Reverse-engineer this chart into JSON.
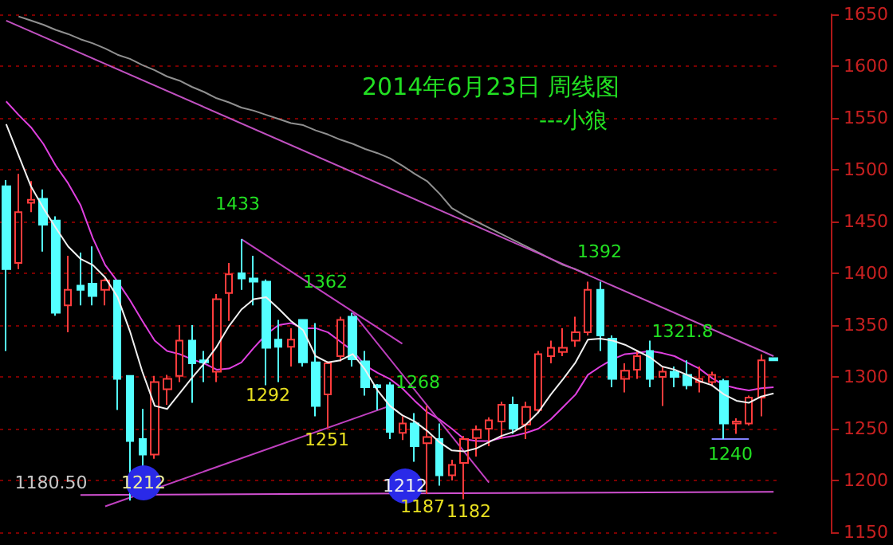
{
  "chart_data": {
    "type": "candlestick",
    "title": "2014年6月23日 周线图",
    "subtitle": "---小狼",
    "categories": [
      null,
      null,
      null,
      null,
      null,
      null,
      null,
      null,
      null,
      null,
      null,
      null,
      null,
      null,
      null,
      null,
      null,
      null,
      null,
      null,
      null,
      null,
      null,
      null,
      null,
      null,
      null,
      null,
      null,
      null,
      null,
      null,
      null,
      null,
      null,
      null,
      null,
      null,
      null,
      null,
      null,
      null,
      null,
      null,
      null,
      null,
      null,
      null,
      null,
      null,
      null,
      null,
      null,
      null,
      null,
      null,
      null,
      null,
      null,
      null,
      null,
      null,
      null
    ],
    "ohlc": [
      [
        1484,
        1490,
        1325,
        1404
      ],
      [
        1410,
        1496,
        1404,
        1459
      ],
      [
        1468,
        1489,
        1459,
        1471
      ],
      [
        1472,
        1481,
        1421,
        1447
      ],
      [
        1451,
        1455,
        1359,
        1362
      ],
      [
        1369,
        1417,
        1343,
        1384
      ],
      [
        1388,
        1420,
        1369,
        1384
      ],
      [
        1390,
        1426,
        1369,
        1378
      ],
      [
        1384,
        1395,
        1369,
        1393
      ],
      [
        1393,
        1393,
        1268,
        1298
      ],
      [
        1301,
        1301,
        1180.5,
        1238
      ],
      [
        1240,
        1269,
        1212,
        1225
      ],
      [
        1225,
        1301,
        1221,
        1295
      ],
      [
        1288,
        1302,
        1273,
        1298
      ],
      [
        1301,
        1350,
        1295,
        1335
      ],
      [
        1335,
        1350,
        1275,
        1313
      ],
      [
        1316,
        1325,
        1295,
        1314
      ],
      [
        1305,
        1380,
        1295,
        1375
      ],
      [
        1381,
        1410,
        1354,
        1399
      ],
      [
        1400,
        1433,
        1384,
        1395
      ],
      [
        1395,
        1417,
        1369,
        1392
      ],
      [
        1392,
        1394,
        1292,
        1328
      ],
      [
        1336,
        1355,
        1295,
        1329
      ],
      [
        1329,
        1347,
        1310,
        1336
      ],
      [
        1355,
        1355,
        1310,
        1314
      ],
      [
        1314,
        1352,
        1262,
        1272
      ],
      [
        1283,
        1315,
        1251,
        1313
      ],
      [
        1320,
        1358,
        1315,
        1355
      ],
      [
        1358,
        1362,
        1310,
        1317
      ],
      [
        1315,
        1325,
        1282,
        1290
      ],
      [
        1292,
        1293,
        1268,
        1290
      ],
      [
        1292,
        1295,
        1240,
        1247
      ],
      [
        1246,
        1262,
        1239,
        1255
      ],
      [
        1255,
        1265,
        1218,
        1233
      ],
      [
        1236,
        1272,
        1187,
        1242
      ],
      [
        1240,
        1255,
        1195,
        1205
      ],
      [
        1205,
        1220,
        1200,
        1215
      ],
      [
        1217,
        1243,
        1182,
        1240
      ],
      [
        1241,
        1253,
        1223,
        1249
      ],
      [
        1250,
        1261,
        1233,
        1258
      ],
      [
        1257,
        1276,
        1240,
        1273
      ],
      [
        1273,
        1281,
        1245,
        1250
      ],
      [
        1254,
        1276,
        1240,
        1271
      ],
      [
        1268,
        1325,
        1265,
        1322
      ],
      [
        1320,
        1335,
        1313,
        1328
      ],
      [
        1324,
        1347,
        1320,
        1328
      ],
      [
        1335,
        1358,
        1329,
        1343
      ],
      [
        1343,
        1392,
        1340,
        1384
      ],
      [
        1384,
        1392,
        1325,
        1340
      ],
      [
        1337,
        1340,
        1290,
        1298
      ],
      [
        1298,
        1313,
        1285,
        1306
      ],
      [
        1307,
        1325,
        1298,
        1320
      ],
      [
        1325,
        1335,
        1290,
        1298
      ],
      [
        1300,
        1310,
        1272,
        1305
      ],
      [
        1305,
        1310,
        1290,
        1300
      ],
      [
        1302,
        1316,
        1288,
        1292
      ],
      [
        1295,
        1310,
        1285,
        1298
      ],
      [
        1295,
        1305,
        1291,
        1302
      ],
      [
        1296,
        1298,
        1240,
        1255
      ],
      [
        1255,
        1260,
        1245,
        1257
      ],
      [
        1255,
        1282,
        1253,
        1280
      ],
      [
        1280,
        1321.8,
        1262,
        1316
      ],
      [
        1318,
        1318,
        1316,
        1316
      ]
    ],
    "series": [
      {
        "type": "line",
        "color": "#f0f0f0",
        "values": [
          1544,
          1514,
          1484,
          1463,
          1444,
          1426,
          1414,
          1408,
          1396,
          1377,
          1344,
          1305,
          1272,
          1269,
          1284,
          1299,
          1313,
          1329,
          1349,
          1365,
          1375,
          1377,
          1366,
          1354,
          1345,
          1320,
          1314,
          1316,
          1322,
          1307,
          1287,
          1272,
          1263,
          1257,
          1248,
          1237,
          1229,
          1228,
          1231,
          1237,
          1243,
          1247,
          1254,
          1266,
          1283,
          1298,
          1314,
          1336,
          1337,
          1335,
          1331,
          1325,
          1319,
          1310,
          1307,
          1302,
          1296,
          1292,
          1283,
          1277,
          1275,
          1281,
          1284
        ]
      },
      {
        "type": "line",
        "color": "#e040e0",
        "values": [
          1566,
          1553,
          1541,
          1525,
          1504,
          1487,
          1466,
          1434,
          1408,
          1392,
          1374,
          1354,
          1335,
          1325,
          1322,
          1317,
          1313,
          1307,
          1308,
          1314,
          1328,
          1341,
          1350,
          1352,
          1347,
          1347,
          1343,
          1334,
          1325,
          1311,
          1304,
          1298,
          1289,
          1277,
          1266,
          1259,
          1250,
          1240,
          1238,
          1238,
          1241,
          1243,
          1246,
          1250,
          1259,
          1271,
          1283,
          1302,
          1310,
          1317,
          1322,
          1323,
          1325,
          1323,
          1320,
          1314,
          1308,
          1299,
          1292,
          1289,
          1287,
          1289,
          1290
        ]
      },
      {
        "type": "line",
        "color": "#909090",
        "values": [
          null,
          1648,
          1644,
          1640,
          1635,
          1631,
          1626,
          1622,
          1617,
          1611,
          1607,
          1601,
          1596,
          1590,
          1586,
          1580,
          1575,
          1569,
          1565,
          1560,
          1557,
          1553,
          1549,
          1545,
          1543,
          1538,
          1534,
          1529,
          1525,
          1520,
          1516,
          1511,
          1504,
          1496,
          1489,
          1477,
          1463,
          1456,
          1450,
          1444,
          1438,
          1432,
          1426,
          1420,
          1414,
          1408,
          1404,
          1399,
          null,
          null,
          null,
          null,
          null,
          null,
          null,
          null,
          null,
          null,
          null,
          null,
          null,
          null,
          null
        ]
      },
      {
        "type": "line",
        "color": "#c050c0",
        "values": [
          1644,
          null,
          null,
          null,
          null,
          null,
          null,
          null,
          null,
          null,
          null,
          null,
          null,
          null,
          null,
          null,
          null,
          null,
          null,
          null,
          null,
          null,
          null,
          null,
          null,
          null,
          null,
          null,
          null,
          null,
          null,
          null,
          null,
          null,
          null,
          null,
          null,
          null,
          null,
          null,
          null,
          null,
          null,
          null,
          null,
          null,
          null,
          null,
          null,
          null,
          null,
          null,
          null,
          null,
          null,
          null,
          null,
          null,
          null,
          null,
          null,
          null,
          1320
        ]
      },
      {
        "type": "line",
        "color": "#c040c0",
        "values": [
          null,
          null,
          null,
          null,
          null,
          null,
          null,
          null,
          null,
          null,
          null,
          null,
          null,
          null,
          null,
          null,
          null,
          null,
          null,
          1433,
          null,
          null,
          null,
          null,
          null,
          null,
          null,
          null,
          null,
          null,
          null,
          null,
          1332,
          null,
          null,
          null,
          null,
          null,
          null,
          null,
          null,
          null,
          null,
          null,
          null,
          null,
          null,
          null,
          null,
          null,
          null,
          null,
          null,
          null,
          null,
          null,
          null,
          null,
          null,
          null,
          null,
          null,
          null
        ]
      },
      {
        "type": "line",
        "color": "#c040c0",
        "values": [
          null,
          null,
          null,
          null,
          null,
          null,
          null,
          null,
          null,
          null,
          null,
          null,
          null,
          null,
          null,
          null,
          null,
          null,
          null,
          null,
          null,
          null,
          null,
          null,
          null,
          null,
          null,
          null,
          1362,
          null,
          null,
          null,
          null,
          null,
          null,
          null,
          null,
          null,
          null,
          1198,
          null,
          null,
          null,
          null,
          null,
          null,
          null,
          null,
          null,
          null,
          null,
          null,
          null,
          null,
          null,
          null,
          null,
          null,
          null,
          null,
          null,
          null,
          null
        ]
      },
      {
        "type": "line",
        "color": "#c040c0",
        "values": [
          null,
          null,
          null,
          null,
          null,
          null,
          null,
          null,
          1175,
          null,
          null,
          null,
          null,
          null,
          null,
          null,
          null,
          null,
          null,
          null,
          null,
          null,
          null,
          null,
          null,
          null,
          null,
          null,
          null,
          null,
          null,
          1272,
          null,
          null,
          null,
          null,
          null,
          null,
          null,
          null,
          null,
          null,
          null,
          null,
          null,
          null,
          null,
          null,
          null,
          null,
          null,
          null,
          null,
          null,
          null,
          null,
          null,
          null,
          null,
          null,
          null,
          null,
          null
        ]
      },
      {
        "type": "line",
        "color": "#d050d0",
        "values": [
          null,
          null,
          null,
          null,
          null,
          null,
          1186,
          null,
          null,
          null,
          null,
          null,
          null,
          null,
          null,
          null,
          null,
          null,
          null,
          null,
          null,
          null,
          null,
          null,
          null,
          null,
          null,
          null,
          null,
          null,
          null,
          null,
          null,
          null,
          null,
          null,
          null,
          null,
          null,
          null,
          null,
          null,
          null,
          null,
          null,
          null,
          null,
          null,
          null,
          null,
          null,
          null,
          null,
          null,
          null,
          null,
          null,
          null,
          null,
          null,
          null,
          null,
          1189
        ]
      },
      {
        "type": "line",
        "color": "#8080ff",
        "values": [
          null,
          null,
          null,
          null,
          null,
          null,
          null,
          null,
          null,
          null,
          null,
          null,
          null,
          null,
          null,
          null,
          null,
          null,
          null,
          null,
          null,
          null,
          null,
          null,
          null,
          null,
          null,
          null,
          null,
          null,
          null,
          null,
          null,
          null,
          null,
          null,
          null,
          null,
          null,
          null,
          null,
          null,
          null,
          null,
          null,
          null,
          null,
          null,
          null,
          null,
          null,
          null,
          null,
          null,
          null,
          null,
          null,
          1240,
          null,
          null,
          1240,
          null,
          null
        ]
      }
    ],
    "annotations": [
      "1433",
      "1362",
      "1268",
      "1392",
      "1321.8",
      "1292",
      "1251",
      "1212",
      "1212",
      "1187",
      "1182",
      "1240",
      "1180.50"
    ],
    "ylim": [
      1150,
      1650
    ],
    "yticks": [
      1150,
      1200,
      1250,
      1300,
      1350,
      1400,
      1450,
      1500,
      1550,
      1600,
      1650
    ],
    "grid": "y",
    "tick_labels": "y"
  }
}
